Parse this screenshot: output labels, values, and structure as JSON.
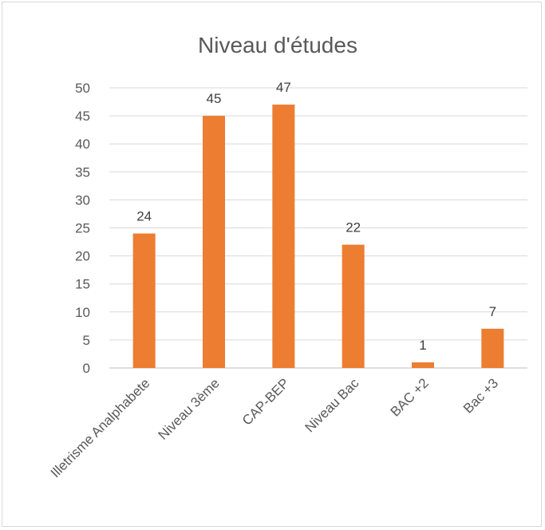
{
  "chart_data": {
    "type": "bar",
    "title": "Niveau d'études",
    "categories": [
      "Illetrisme Analphabete",
      "Niveau 3ème",
      "CAP-BEP",
      "Niveau Bac",
      "BAC +2",
      "Bac +3"
    ],
    "values": [
      24,
      45,
      47,
      22,
      1,
      7
    ],
    "ylim": [
      0,
      50
    ],
    "yticks": [
      0,
      5,
      10,
      15,
      20,
      25,
      30,
      35,
      40,
      45,
      50
    ],
    "grid": true,
    "bar_color": "#ED7D31",
    "legend": "none"
  }
}
